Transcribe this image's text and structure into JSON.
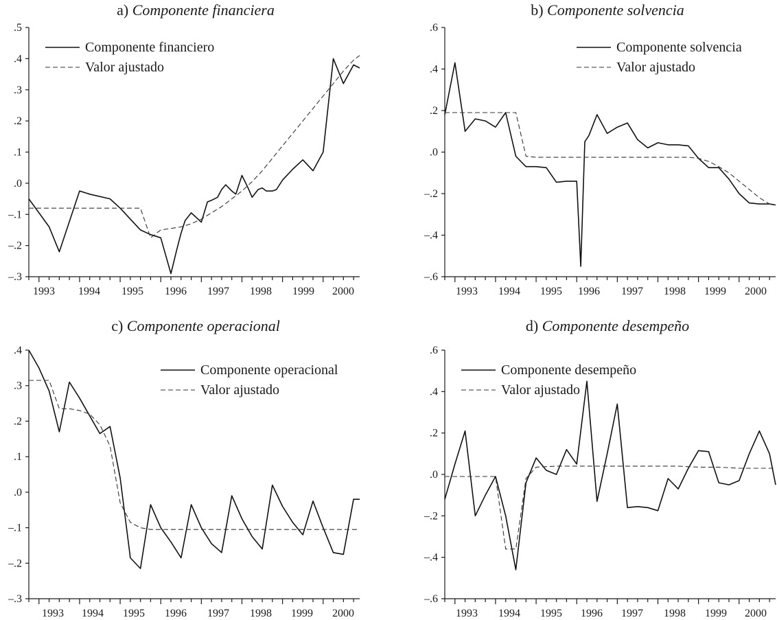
{
  "chart_data": [
    {
      "type": "line",
      "panel": "a",
      "title": "a) Componente financiera",
      "title_prefix": "a)",
      "title_main": "Componente financiera",
      "x_range": [
        1992.75,
        2000.9
      ],
      "x_ticks": [
        "1993",
        "1994",
        "1995",
        "1996",
        "1997",
        "1998",
        "1999",
        "2000"
      ],
      "ylim": [
        -0.3,
        0.5
      ],
      "y_ticks": [
        -0.3,
        -0.2,
        -0.1,
        0.0,
        0.1,
        0.2,
        0.3,
        0.4,
        0.5
      ],
      "y_tick_labels": [
        "–.3",
        "–.2",
        "–.1",
        ".0",
        ".1",
        ".2",
        ".3",
        ".4",
        ".5"
      ],
      "legend_position": "top-left",
      "series": [
        {
          "name": "Componente financiero",
          "style": "solid",
          "x": [
            1992.75,
            1993.25,
            1993.5,
            1994.0,
            1994.25,
            1994.75,
            1995.0,
            1995.5,
            1995.75,
            1996.0,
            1996.25,
            1996.4,
            1996.5,
            1996.6,
            1996.75,
            1997.0,
            1997.15,
            1997.25,
            1997.4,
            1997.5,
            1997.6,
            1997.75,
            1997.85,
            1998.0,
            1998.15,
            1998.25,
            1998.4,
            1998.5,
            1998.6,
            1998.75,
            1998.85,
            1999.0,
            1999.25,
            1999.5,
            1999.75,
            2000.0,
            2000.25,
            2000.5,
            2000.75,
            2000.9
          ],
          "values": [
            -0.05,
            -0.14,
            -0.22,
            -0.025,
            -0.035,
            -0.05,
            -0.08,
            -0.15,
            -0.165,
            -0.175,
            -0.29,
            -0.21,
            -0.16,
            -0.12,
            -0.095,
            -0.125,
            -0.06,
            -0.055,
            -0.045,
            -0.02,
            -0.005,
            -0.025,
            -0.035,
            0.025,
            -0.015,
            -0.045,
            -0.02,
            -0.015,
            -0.025,
            -0.025,
            -0.02,
            0.01,
            0.045,
            0.075,
            0.04,
            0.1,
            0.4,
            0.32,
            0.38,
            0.37
          ]
        },
        {
          "name": "Valor ajustado",
          "style": "dashed",
          "x": [
            1992.75,
            1993.25,
            1993.5,
            1993.75,
            1994.0,
            1994.25,
            1994.5,
            1994.55,
            1994.75,
            1995.0,
            1995.25,
            1995.5,
            1995.75,
            1996.0,
            1996.25,
            1996.5,
            1996.75,
            1997.0,
            1997.25,
            1997.5,
            1997.75,
            1998.0,
            1998.25,
            1998.5,
            1998.75,
            1999.0,
            1999.25,
            1999.5,
            1999.75,
            2000.0,
            2000.25,
            2000.5,
            2000.75,
            2000.9
          ],
          "values": [
            -0.08,
            -0.08,
            -0.08,
            -0.08,
            -0.08,
            -0.08,
            -0.08,
            -0.08,
            -0.08,
            -0.08,
            -0.08,
            -0.08,
            -0.175,
            -0.15,
            -0.145,
            -0.14,
            -0.13,
            -0.115,
            -0.095,
            -0.075,
            -0.05,
            -0.025,
            0.005,
            0.04,
            0.08,
            0.12,
            0.16,
            0.2,
            0.24,
            0.28,
            0.32,
            0.36,
            0.395,
            0.41
          ]
        }
      ]
    },
    {
      "type": "line",
      "panel": "b",
      "title": "b) Componente solvencia",
      "title_prefix": "b)",
      "title_main": "Componente solvencia",
      "x_range": [
        1992.75,
        2000.9
      ],
      "x_ticks": [
        "1993",
        "1994",
        "1995",
        "1996",
        "1997",
        "1998",
        "1999",
        "2000"
      ],
      "ylim": [
        -0.6,
        0.6
      ],
      "y_ticks": [
        -0.6,
        -0.4,
        -0.2,
        0.0,
        0.2,
        0.4,
        0.6
      ],
      "y_tick_labels": [
        "–.6",
        "–.4",
        "–.2",
        ".0",
        ".2",
        ".4",
        ".6"
      ],
      "legend_position": "top-right",
      "series": [
        {
          "name": "Componente solvencia",
          "style": "solid",
          "x": [
            1992.75,
            1993.0,
            1993.25,
            1993.5,
            1993.75,
            1994.0,
            1994.25,
            1994.5,
            1994.75,
            1995.0,
            1995.25,
            1995.5,
            1995.75,
            1996.0,
            1996.1,
            1996.2,
            1996.3,
            1996.5,
            1996.75,
            1997.0,
            1997.25,
            1997.5,
            1997.75,
            1998.0,
            1998.25,
            1998.5,
            1998.75,
            1999.0,
            1999.25,
            1999.5,
            1999.75,
            2000.0,
            2000.25,
            2000.5,
            2000.75,
            2000.9
          ],
          "values": [
            0.18,
            0.43,
            0.1,
            0.16,
            0.15,
            0.12,
            0.19,
            -0.02,
            -0.07,
            -0.07,
            -0.075,
            -0.145,
            -0.14,
            -0.14,
            -0.55,
            0.05,
            0.08,
            0.18,
            0.09,
            0.12,
            0.14,
            0.06,
            0.02,
            0.045,
            0.035,
            0.035,
            0.03,
            -0.03,
            -0.075,
            -0.075,
            -0.13,
            -0.2,
            -0.245,
            -0.25,
            -0.25,
            -0.255
          ]
        },
        {
          "name": "Valor ajustado",
          "style": "dashed",
          "x": [
            1992.75,
            1993.25,
            1993.5,
            1993.75,
            1994.0,
            1994.25,
            1994.5,
            1994.75,
            1995.0,
            1995.5,
            1996.0,
            1996.5,
            1997.0,
            1997.5,
            1998.0,
            1998.5,
            1998.75,
            1999.0,
            1999.25,
            1999.5,
            1999.75,
            2000.0,
            2000.25,
            2000.5,
            2000.75,
            2000.9
          ],
          "values": [
            0.19,
            0.19,
            0.19,
            0.19,
            0.19,
            0.19,
            0.19,
            -0.02,
            -0.025,
            -0.025,
            -0.025,
            -0.025,
            -0.025,
            -0.025,
            -0.025,
            -0.025,
            -0.025,
            -0.03,
            -0.045,
            -0.07,
            -0.1,
            -0.14,
            -0.18,
            -0.22,
            -0.25,
            -0.255
          ]
        }
      ]
    },
    {
      "type": "line",
      "panel": "c",
      "title": "c) Componente operacional",
      "title_prefix": "c)",
      "title_main": "Componente operacional",
      "x_range": [
        1992.75,
        2000.9
      ],
      "x_ticks": [
        "1993",
        "1994",
        "1995",
        "1996",
        "1997",
        "1998",
        "1999",
        "2000"
      ],
      "ylim": [
        -0.3,
        0.4
      ],
      "y_ticks": [
        -0.3,
        -0.2,
        -0.1,
        0.0,
        0.1,
        0.2,
        0.3,
        0.4
      ],
      "y_tick_labels": [
        "–.3",
        "–.2",
        "–.1",
        ".0",
        ".1",
        ".2",
        ".3",
        ".4"
      ],
      "legend_position": "top-right",
      "series": [
        {
          "name": "Componente operacional",
          "style": "solid",
          "x": [
            1992.75,
            1993.0,
            1993.25,
            1993.5,
            1993.75,
            1994.0,
            1994.25,
            1994.5,
            1994.75,
            1995.0,
            1995.25,
            1995.5,
            1995.75,
            1996.0,
            1996.25,
            1996.5,
            1996.75,
            1997.0,
            1997.25,
            1997.5,
            1997.75,
            1998.0,
            1998.25,
            1998.5,
            1998.75,
            1999.0,
            1999.25,
            1999.5,
            1999.75,
            2000.0,
            2000.25,
            2000.5,
            2000.75,
            2000.9
          ],
          "values": [
            0.4,
            0.35,
            0.285,
            0.17,
            0.31,
            0.265,
            0.215,
            0.165,
            0.185,
            0.04,
            -0.185,
            -0.215,
            -0.035,
            -0.1,
            -0.14,
            -0.185,
            -0.035,
            -0.1,
            -0.145,
            -0.17,
            -0.01,
            -0.075,
            -0.125,
            -0.16,
            0.02,
            -0.04,
            -0.085,
            -0.12,
            -0.025,
            -0.1,
            -0.17,
            -0.175,
            -0.02,
            -0.02
          ]
        },
        {
          "name": "Valor ajustado",
          "style": "dashed",
          "x": [
            1992.75,
            1993.0,
            1993.25,
            1993.5,
            1993.75,
            1994.0,
            1994.25,
            1994.5,
            1994.75,
            1995.0,
            1995.25,
            1995.5,
            1995.75,
            1996.0,
            1996.5,
            1997.0,
            1997.5,
            1998.0,
            1998.5,
            1999.0,
            1999.5,
            2000.0,
            2000.5,
            2000.9
          ],
          "values": [
            0.315,
            0.315,
            0.315,
            0.235,
            0.235,
            0.23,
            0.22,
            0.19,
            0.13,
            -0.03,
            -0.085,
            -0.1,
            -0.105,
            -0.105,
            -0.105,
            -0.105,
            -0.105,
            -0.105,
            -0.105,
            -0.105,
            -0.105,
            -0.105,
            -0.105,
            -0.105
          ]
        }
      ]
    },
    {
      "type": "line",
      "panel": "d",
      "title": "d) Componente desempeño",
      "title_prefix": "d)",
      "title_main": "Componente desempeño",
      "x_range": [
        1992.75,
        2000.9
      ],
      "x_ticks": [
        "1993",
        "1994",
        "1995",
        "1996",
        "1997",
        "1998",
        "1999",
        "2000"
      ],
      "ylim": [
        -0.6,
        0.6
      ],
      "y_ticks": [
        -0.6,
        -0.4,
        -0.2,
        0.0,
        0.2,
        0.4,
        0.6
      ],
      "y_tick_labels": [
        "–.6",
        "–.4",
        "–.2",
        ".0",
        ".2",
        ".4",
        ".6"
      ],
      "legend_position": "top-left",
      "series": [
        {
          "name": "Componente desempeño",
          "style": "solid",
          "x": [
            1992.75,
            1993.0,
            1993.25,
            1993.5,
            1993.75,
            1994.0,
            1994.25,
            1994.5,
            1994.75,
            1995.0,
            1995.25,
            1995.5,
            1995.75,
            1996.0,
            1996.25,
            1996.5,
            1996.75,
            1997.0,
            1997.25,
            1997.5,
            1997.75,
            1998.0,
            1998.25,
            1998.5,
            1998.75,
            1999.0,
            1999.25,
            1999.5,
            1999.75,
            2000.0,
            2000.25,
            2000.5,
            2000.75,
            2000.9
          ],
          "values": [
            -0.12,
            0.05,
            0.21,
            -0.2,
            -0.1,
            -0.01,
            -0.2,
            -0.46,
            -0.04,
            0.08,
            0.02,
            0.0,
            0.12,
            0.05,
            0.45,
            -0.13,
            0.1,
            0.34,
            -0.16,
            -0.155,
            -0.16,
            -0.175,
            -0.02,
            -0.07,
            0.03,
            0.115,
            0.11,
            -0.04,
            -0.05,
            -0.03,
            0.1,
            0.21,
            0.1,
            -0.05
          ]
        },
        {
          "name": "Valor ajustado",
          "style": "dashed",
          "x": [
            1992.75,
            1993.0,
            1993.25,
            1993.5,
            1993.75,
            1994.0,
            1994.25,
            1994.5,
            1994.75,
            1995.0,
            1995.5,
            1996.0,
            1996.5,
            1997.0,
            1997.5,
            1998.0,
            1998.5,
            1999.0,
            1999.5,
            2000.0,
            2000.5,
            2000.9
          ],
          "values": [
            -0.01,
            -0.01,
            -0.01,
            -0.01,
            -0.01,
            -0.01,
            -0.36,
            -0.36,
            -0.02,
            0.035,
            0.04,
            0.04,
            0.04,
            0.04,
            0.04,
            0.04,
            0.04,
            0.035,
            0.035,
            0.03,
            0.03,
            0.03
          ]
        }
      ]
    }
  ]
}
